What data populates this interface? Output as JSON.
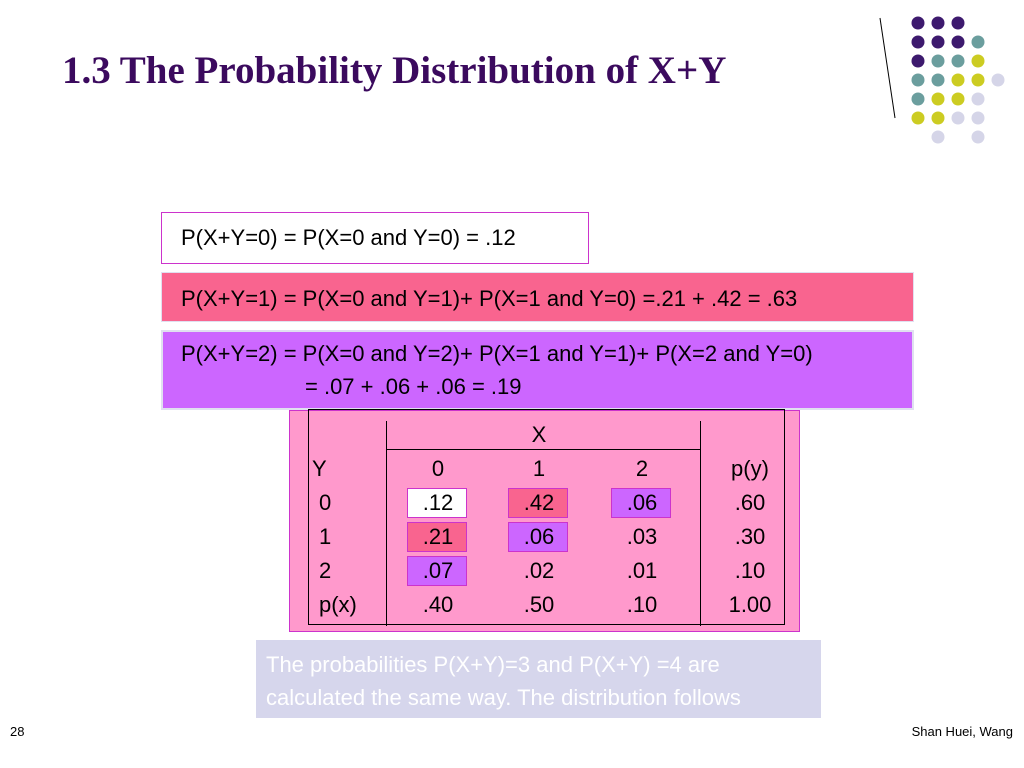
{
  "title": "1.3 The Probability Distribution of X+Y",
  "boxes": [
    "P(X+Y=0) = P(X=0 and Y=0) = .12",
    "P(X+Y=1) = P(X=0 and Y=1)+ P(X=1 and Y=0) =.21 + .42 = .63",
    "P(X+Y=2) = P(X=0 and Y=2)+ P(X=1 and Y=1)+ P(X=2 and Y=0)",
    "= .07 + .06 + .06 = .19"
  ],
  "table": {
    "x_label": "X",
    "header": [
      "Y",
      "0",
      "1",
      "2",
      "p(y)"
    ],
    "rows": [
      [
        "0",
        ".12",
        ".42",
        ".06",
        ".60"
      ],
      [
        "1",
        ".21",
        ".06",
        ".03",
        ".30"
      ],
      [
        "2",
        ".07",
        ".02",
        ".01",
        ".10"
      ],
      [
        "p(x)",
        ".40",
        ".50",
        ".10",
        "1.00"
      ]
    ]
  },
  "note": "The probabilities P(X+Y)=3 and P(X+Y) =4 are calculated the same way.  The distribution follows",
  "footer": {
    "page": "28",
    "author": "Shan Huei, Wang"
  }
}
